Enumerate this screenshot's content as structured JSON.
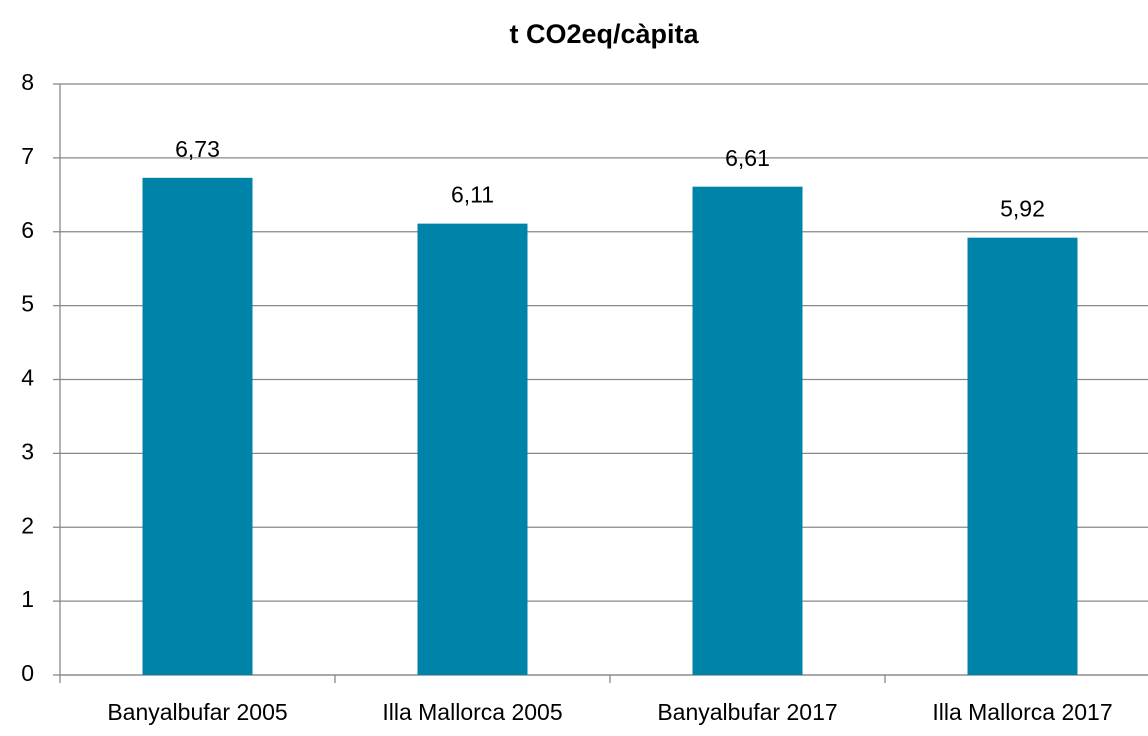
{
  "chart_data": {
    "type": "bar",
    "title": "t CO2eq/càpita",
    "categories": [
      "Banyalbufar 2005",
      "Illa Mallorca 2005",
      "Banyalbufar 2017",
      "Illa Mallorca 2017"
    ],
    "values": [
      6.73,
      6.11,
      6.61,
      5.92
    ],
    "value_labels": [
      "6,73",
      "6,11",
      "6,61",
      "5,92"
    ],
    "color": "#0083a9",
    "ylim": [
      0,
      8
    ],
    "yticks": [
      0,
      1,
      2,
      3,
      4,
      5,
      6,
      7,
      8
    ],
    "grid": true
  }
}
